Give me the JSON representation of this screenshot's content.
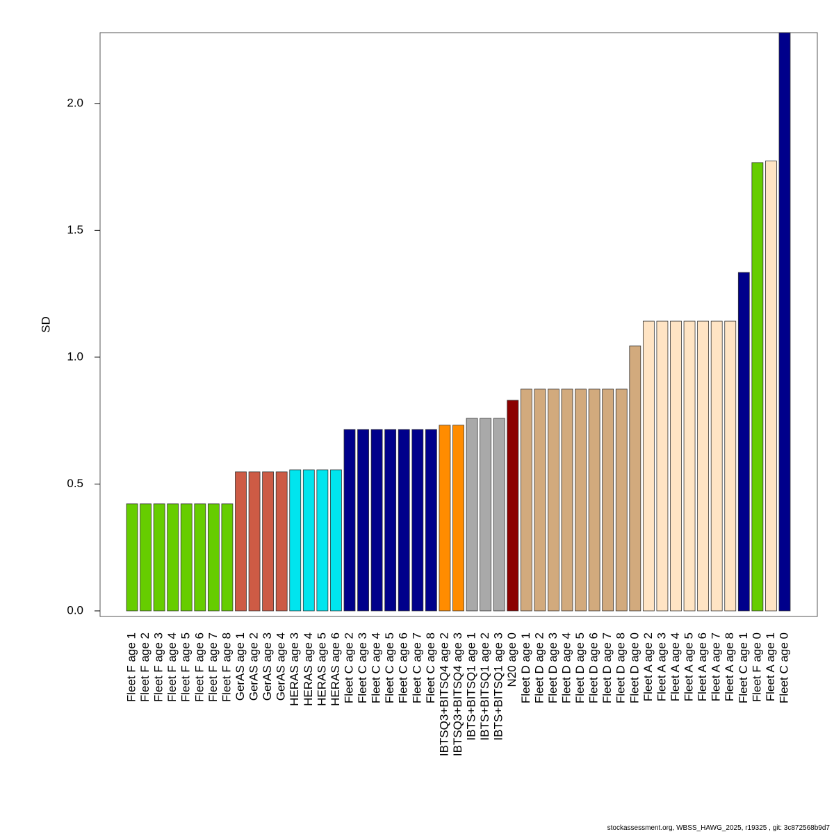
{
  "chart_data": {
    "type": "bar",
    "y_label": "SD",
    "footer": "stockassessment.org, WBSS_HAWG_2025, r19325 , git: 3c872568b9d7",
    "categories": [
      "Fleet F age 1",
      "Fleet F age 2",
      "Fleet F age 3",
      "Fleet F age 4",
      "Fleet F age 5",
      "Fleet F age 6",
      "Fleet F age 7",
      "Fleet F age 8",
      "GerAS age 1",
      "GerAS age 2",
      "GerAS age 3",
      "GerAS age 4",
      "HERAS age 3",
      "HERAS age 4",
      "HERAS age 5",
      "HERAS age 6",
      "Fleet C age 2",
      "Fleet C age 3",
      "Fleet C age 4",
      "Fleet C age 5",
      "Fleet C age 6",
      "Fleet C age 7",
      "Fleet C age 8",
      "IBTSQ3+BITSQ4 age 2",
      "IBTSQ3+BITSQ4 age 3",
      "IBTS+BITSQ1 age 1",
      "IBTS+BITSQ1 age 2",
      "IBTS+BITSQ1 age 3",
      "N20 age 0",
      "Fleet D age 1",
      "Fleet D age 2",
      "Fleet D age 3",
      "Fleet D age 4",
      "Fleet D age 5",
      "Fleet D age 6",
      "Fleet D age 7",
      "Fleet D age 8",
      "Fleet D age 0",
      "Fleet A age 2",
      "Fleet A age 3",
      "Fleet A age 4",
      "Fleet A age 5",
      "Fleet A age 6",
      "Fleet A age 7",
      "Fleet A age 8",
      "Fleet C age 1",
      "Fleet F age 0",
      "Fleet A age 1",
      "Fleet C age 0"
    ],
    "values": [
      0.422,
      0.422,
      0.422,
      0.422,
      0.422,
      0.422,
      0.422,
      0.422,
      0.548,
      0.548,
      0.548,
      0.548,
      0.556,
      0.556,
      0.556,
      0.556,
      0.715,
      0.715,
      0.715,
      0.715,
      0.715,
      0.715,
      0.715,
      0.732,
      0.732,
      0.759,
      0.759,
      0.759,
      0.83,
      0.874,
      0.874,
      0.874,
      0.874,
      0.874,
      0.874,
      0.874,
      0.874,
      1.044,
      1.142,
      1.142,
      1.142,
      1.142,
      1.142,
      1.142,
      1.142,
      1.334,
      1.767,
      1.773,
      2.28
    ],
    "colors": [
      "#66cd00",
      "#66cd00",
      "#66cd00",
      "#66cd00",
      "#66cd00",
      "#66cd00",
      "#66cd00",
      "#66cd00",
      "#cd5b45",
      "#cd5b45",
      "#cd5b45",
      "#cd5b45",
      "#00e5ee",
      "#00e5ee",
      "#00e5ee",
      "#00e5ee",
      "#00008b",
      "#00008b",
      "#00008b",
      "#00008b",
      "#00008b",
      "#00008b",
      "#00008b",
      "#ff8c00",
      "#ff8c00",
      "#a9a9a9",
      "#a9a9a9",
      "#a9a9a9",
      "#8b0000",
      "#d2aa7d",
      "#d2aa7d",
      "#d2aa7d",
      "#d2aa7d",
      "#d2aa7d",
      "#d2aa7d",
      "#d2aa7d",
      "#d2aa7d",
      "#d2aa7d",
      "#ffe4c4",
      "#ffe4c4",
      "#ffe4c4",
      "#ffe4c4",
      "#ffe4c4",
      "#ffe4c4",
      "#ffe4c4",
      "#00008b",
      "#66cd00",
      "#ffe4c4",
      "#00008b"
    ],
    "ylim": [
      -0.022,
      2.279
    ],
    "yticks": [
      {
        "value": 0,
        "label": "0.0"
      },
      0.5,
      {
        "value": 1,
        "label": "1.0"
      },
      1.5,
      {
        "value": 2,
        "label": "2.0"
      }
    ]
  }
}
